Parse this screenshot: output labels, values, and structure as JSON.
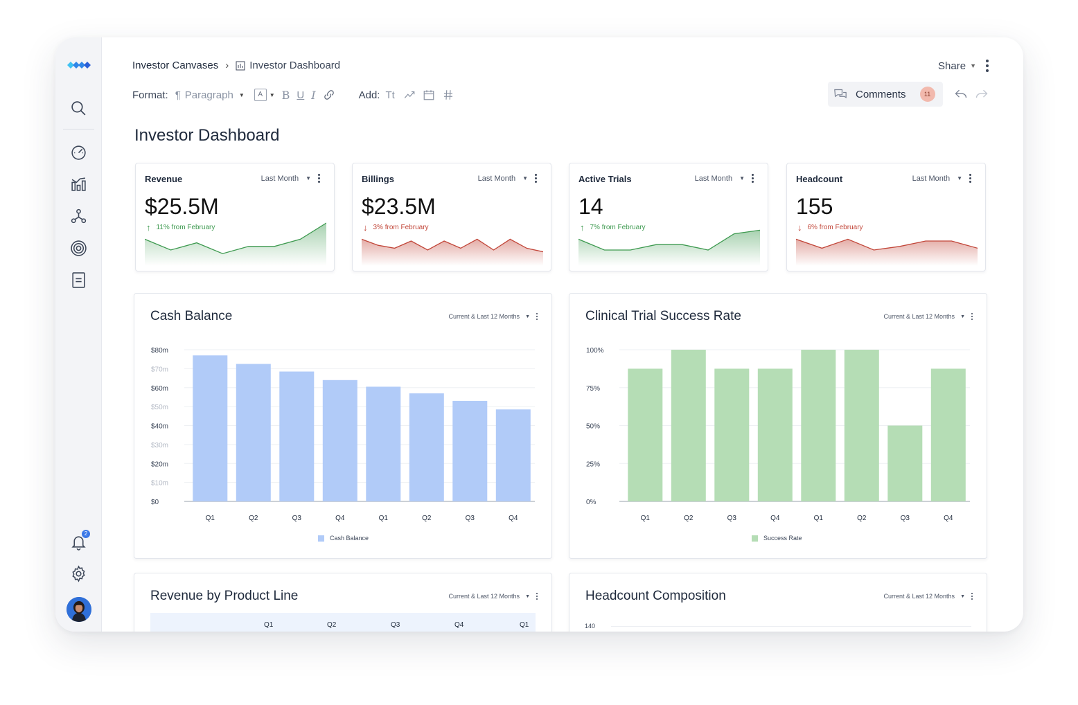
{
  "breadcrumb": {
    "parent": "Investor Canvases",
    "current": "Investor Dashboard"
  },
  "share_label": "Share",
  "format": {
    "label": "Format:",
    "paragraph": "Paragraph",
    "font_box": "A",
    "add_label": "Add:",
    "text_tool": "Tt"
  },
  "comments": {
    "label": "Comments",
    "count": "11"
  },
  "notifications_count": "2",
  "page_title": "Investor Dashboard",
  "kpis": [
    {
      "title": "Revenue",
      "period": "Last Month",
      "value": "$25.5M",
      "change": "11% from February",
      "trend": "up",
      "spark": [
        0.55,
        0.25,
        0.45,
        0.15,
        0.35,
        0.35,
        0.55,
        1.0
      ]
    },
    {
      "title": "Billings",
      "period": "Last Month",
      "value": "$23.5M",
      "change": "3% from February",
      "trend": "down",
      "spark": [
        0.55,
        0.38,
        0.3,
        0.5,
        0.25,
        0.5,
        0.3,
        0.55,
        0.25,
        0.55,
        0.3,
        0.2
      ]
    },
    {
      "title": "Active Trials",
      "period": "Last Month",
      "value": "14",
      "change": "7% from February",
      "trend": "up",
      "spark": [
        0.55,
        0.25,
        0.25,
        0.4,
        0.4,
        0.25,
        0.7,
        0.8
      ]
    },
    {
      "title": "Headcount",
      "period": "Last Month",
      "value": "155",
      "change": "6% from February",
      "trend": "down",
      "spark": [
        0.55,
        0.3,
        0.55,
        0.25,
        0.35,
        0.5,
        0.5,
        0.3
      ]
    }
  ],
  "panels": {
    "cash": {
      "title": "Cash Balance",
      "period": "Current & Last 12 Months",
      "legend": "Cash Balance"
    },
    "trial": {
      "title": "Clinical Trial Success Rate",
      "period": "Current & Last 12 Months",
      "legend": "Success Rate"
    },
    "revenue_product": {
      "title": "Revenue by Product Line",
      "period": "Current & Last 12 Months",
      "columns": [
        "Q1",
        "Q2",
        "Q3",
        "Q4",
        "Q1"
      ]
    },
    "headcount": {
      "title": "Headcount Composition",
      "period": "Current & Last 12 Months",
      "y_top": "140"
    }
  },
  "colors": {
    "cash_bar": "#b1cbf8",
    "trial_bar": "#b5ddb5",
    "up": "#3e9a50",
    "down": "#c2473a"
  },
  "chart_data": [
    {
      "type": "bar",
      "title": "Cash Balance",
      "categories": [
        "Q1",
        "Q2",
        "Q3",
        "Q4",
        "Q1",
        "Q2",
        "Q3",
        "Q4"
      ],
      "series": [
        {
          "name": "Cash Balance",
          "values": [
            77,
            72.5,
            68.5,
            64,
            60.5,
            57,
            53,
            48.5
          ]
        }
      ],
      "y_ticks": [
        "$0",
        "$10m",
        "$20m",
        "$30m",
        "$40m",
        "$50m",
        "$60m",
        "$70m",
        "$80m"
      ],
      "ylim": [
        0,
        80
      ],
      "grid": true,
      "legend": "bottom-center"
    },
    {
      "type": "bar",
      "title": "Clinical Trial Success Rate",
      "categories": [
        "Q1",
        "Q2",
        "Q3",
        "Q4",
        "Q1",
        "Q2",
        "Q3",
        "Q4"
      ],
      "series": [
        {
          "name": "Success Rate",
          "values": [
            87.5,
            100,
            87.5,
            87.5,
            100,
            100,
            50,
            87.5
          ]
        }
      ],
      "y_ticks": [
        "0%",
        "25%",
        "50%",
        "75%",
        "100%"
      ],
      "ylim": [
        0,
        100
      ],
      "grid": true,
      "legend": "bottom-center"
    }
  ]
}
